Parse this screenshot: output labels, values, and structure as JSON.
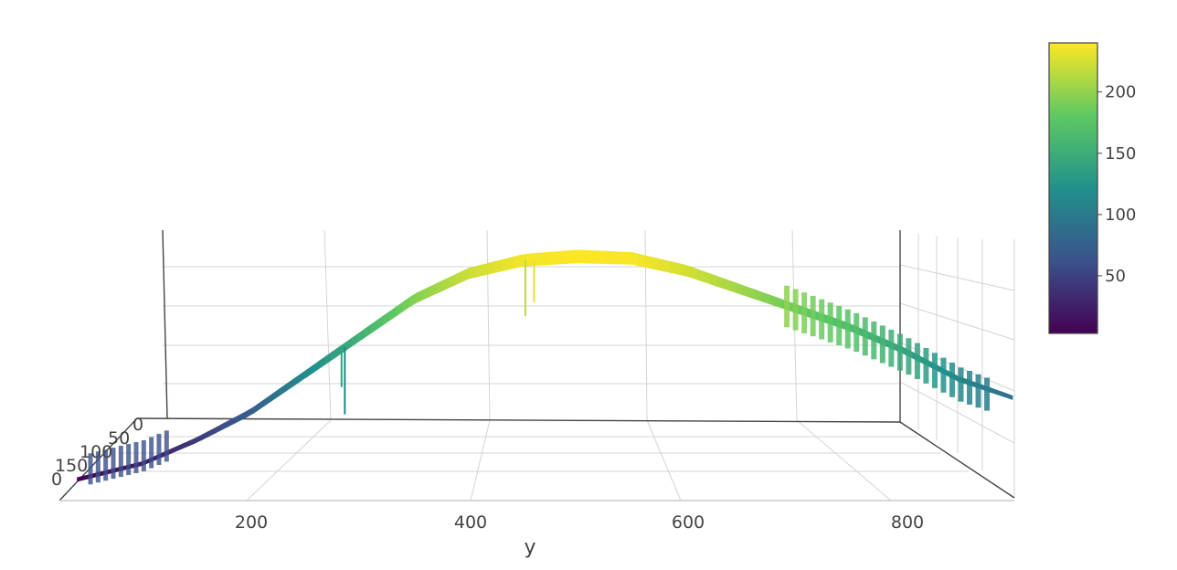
{
  "chart_data": {
    "type": "surface-3d",
    "x_axis": {
      "title": "y",
      "tick_labels": [
        "200",
        "400",
        "600",
        "800"
      ],
      "ticks": [
        200,
        400,
        600,
        800
      ]
    },
    "depth_axis": {
      "tick_labels": [
        "0",
        "50",
        "100",
        "150"
      ],
      "ticks": [
        0,
        50,
        100,
        150
      ]
    },
    "vertical_axis": {
      "tick_labels": []
    },
    "colorbar": {
      "tick_labels": [
        "200",
        "150",
        "100",
        "50"
      ],
      "ticks": [
        200,
        150,
        100,
        50
      ],
      "range": [
        3,
        240
      ]
    },
    "colorscale": {
      "name": "Viridis",
      "stops": [
        "#440154",
        "#3b528b",
        "#21918c",
        "#5ec962",
        "#fde725"
      ]
    },
    "profile": {
      "x": [
        40,
        100,
        150,
        200,
        250,
        300,
        350,
        400,
        450,
        500,
        550,
        600,
        650,
        700,
        750,
        800,
        850,
        900
      ],
      "z": [
        3,
        20,
        45,
        75,
        115,
        155,
        195,
        222,
        236,
        240,
        238,
        225,
        205,
        185,
        165,
        140,
        110,
        90
      ]
    },
    "grid": true
  }
}
